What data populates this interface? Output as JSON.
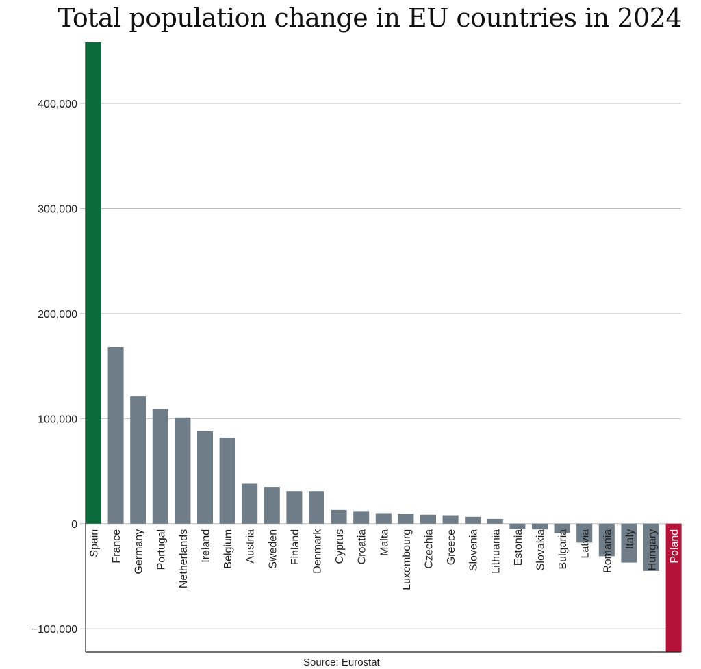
{
  "chart_data": {
    "type": "bar",
    "title": "Total population change in EU countries in 2024",
    "source": "Source: Eurostat",
    "ylim": [
      -122000,
      458000
    ],
    "yticks": [
      -100000,
      0,
      100000,
      200000,
      300000,
      400000
    ],
    "ytick_labels": [
      "−100,000",
      "0",
      "100,000",
      "200,000",
      "300,000",
      "400,000"
    ],
    "grid": true,
    "categories": [
      "Spain",
      "France",
      "Germany",
      "Portugal",
      "Netherlands",
      "Ireland",
      "Belgium",
      "Austria",
      "Sweden",
      "Finland",
      "Denmark",
      "Cyprus",
      "Croatia",
      "Malta",
      "Luxembourg",
      "Czechia",
      "Greece",
      "Slovenia",
      "Lithuania",
      "Estonia",
      "Slovakia",
      "Bulgaria",
      "Latvia",
      "Romania",
      "Italy",
      "Hungary",
      "Poland"
    ],
    "values": [
      460000,
      168000,
      121000,
      109000,
      101000,
      88000,
      82000,
      38000,
      35000,
      31000,
      31000,
      13000,
      12000,
      10000,
      9500,
      8500,
      8000,
      6500,
      4500,
      -5000,
      -5500,
      -9000,
      -18000,
      -31000,
      -37000,
      -45000,
      -125000
    ],
    "colors": {
      "default": "#6f7d88",
      "highlight_max": "#0b6b3a",
      "highlight_min": "#b5123a",
      "grid": "#bcbcbc",
      "axis": "#222222"
    }
  }
}
